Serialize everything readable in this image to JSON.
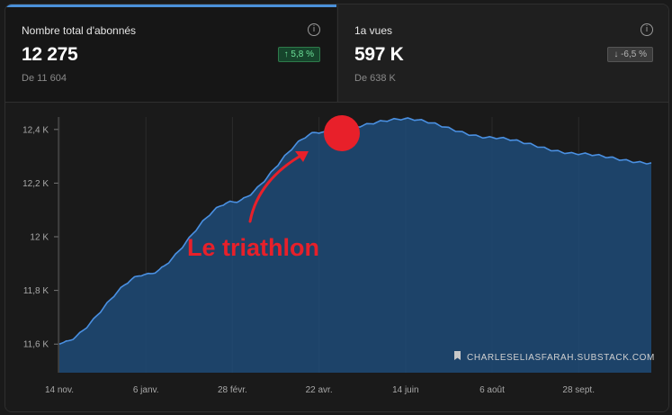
{
  "card_subscribers": {
    "label": "Nombre total d'abonnés",
    "value": "12 275",
    "change": "↑ 5,8 %",
    "from": "De 11 604",
    "info_icon": "info-icon"
  },
  "card_views": {
    "label": "1a vues",
    "value": "597 K",
    "change": "↓ -6,5 %",
    "from": "De 638 K",
    "info_icon": "info-icon"
  },
  "annotation": {
    "text": "Le triathlon",
    "color": "#e8202a",
    "marker": "red-dot",
    "arrow": "curved-arrow"
  },
  "watermark": {
    "icon": "bookmark-icon",
    "text": "CHARLESELIASFARAH.SUBSTACK.COM"
  },
  "colors": {
    "line": "#4a90e2",
    "fill": "#1f4b78",
    "accent": "#4a90d9",
    "positive": "#6ee29a"
  },
  "chart_data": {
    "type": "area",
    "title": "",
    "xlabel": "",
    "ylabel": "",
    "x_ticks": [
      "14 nov.",
      "6 janv.",
      "28 févr.",
      "22 avr.",
      "14 juin",
      "6 août",
      "28 sept."
    ],
    "y_ticks": [
      "11,6 K",
      "11,8 K",
      "12 K",
      "12,2 K",
      "12,4 K"
    ],
    "ylim": [
      11500,
      12500
    ],
    "grid": "vertical",
    "series": [
      {
        "x": [
          "14 nov.",
          "6 janv.",
          "28 févr.",
          "22 avr.",
          "14 juin",
          "6 août",
          "28 sept.",
          "end"
        ],
        "values": [
          11604,
          11860,
          12130,
          12390,
          12440,
          12370,
          12310,
          12275
        ]
      }
    ]
  }
}
